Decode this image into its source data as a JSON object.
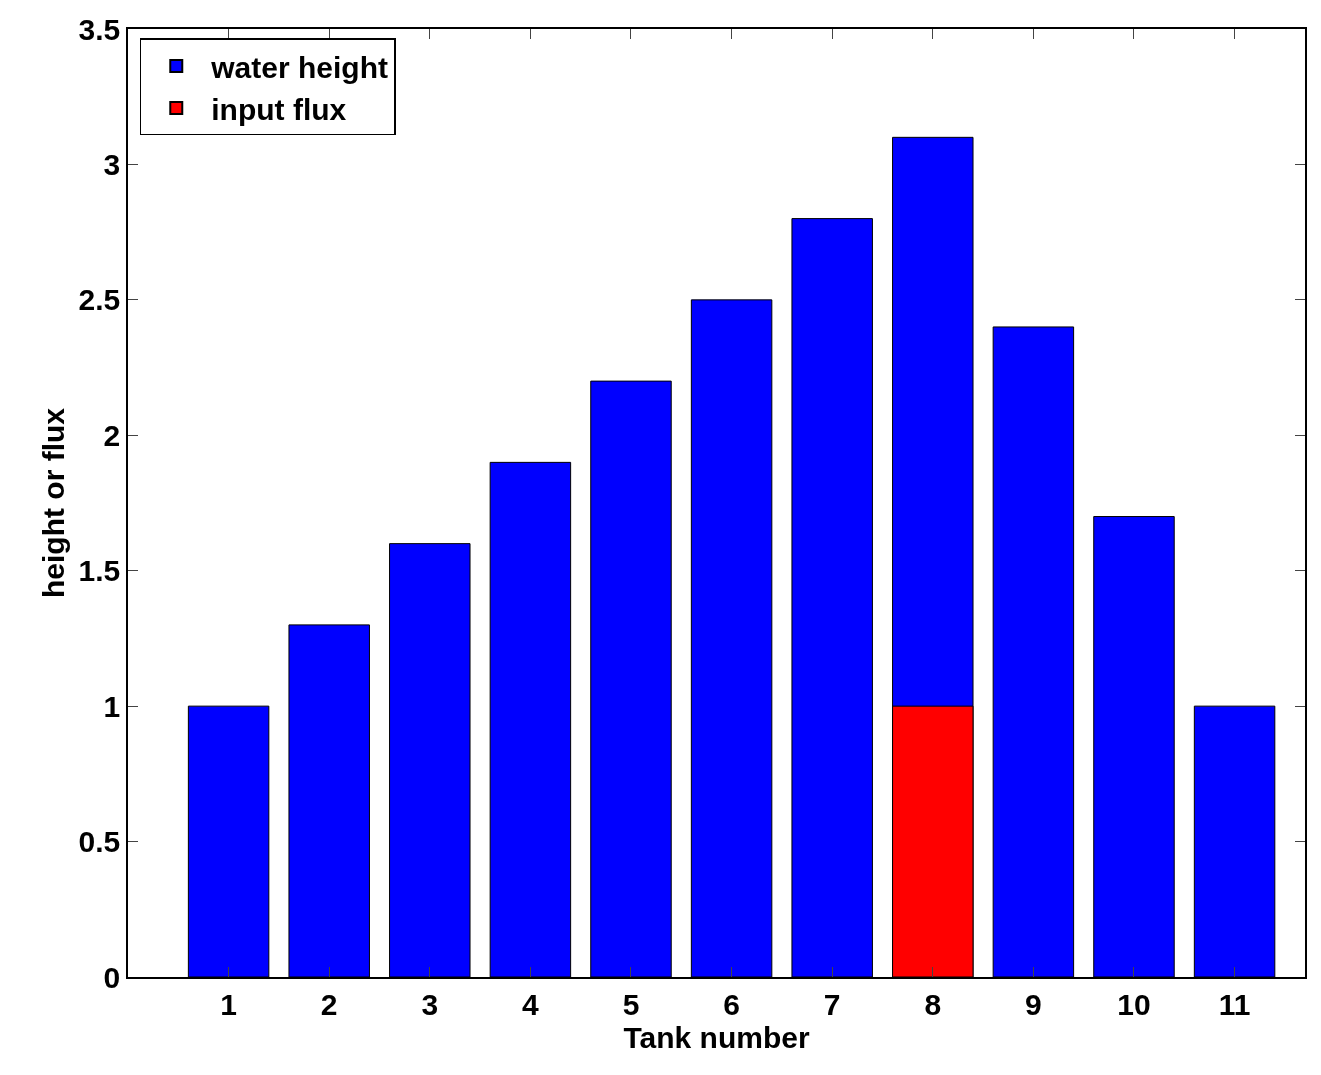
{
  "chart_data": {
    "type": "bar",
    "xlabel": "Tank number",
    "ylabel": "height or flux",
    "categories": [
      "1",
      "2",
      "3",
      "4",
      "5",
      "6",
      "7",
      "8",
      "9",
      "10",
      "11"
    ],
    "series": [
      {
        "name": "water height",
        "color": "#0000ff",
        "values": [
          1,
          1.3,
          1.6,
          1.9,
          2.2,
          2.5,
          2.8,
          3.1,
          2.4,
          1.7,
          1
        ]
      },
      {
        "name": "input flux",
        "color": "#ff0000",
        "values": [
          null,
          null,
          null,
          null,
          null,
          null,
          null,
          1,
          null,
          null,
          null
        ]
      }
    ],
    "ylim": [
      0,
      3.5
    ],
    "yticks": [
      0,
      0.5,
      1,
      1.5,
      2,
      2.5,
      3,
      3.5
    ],
    "legend": "top left"
  }
}
